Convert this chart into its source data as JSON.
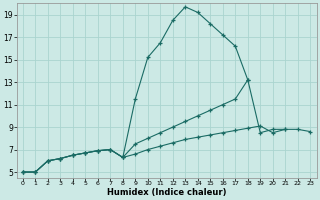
{
  "xlabel": "Humidex (Indice chaleur)",
  "bg_color": "#cce9e5",
  "grid_color": "#aad4cf",
  "line_color": "#1a6b64",
  "xlim": [
    -0.5,
    23.5
  ],
  "ylim": [
    4.5,
    20.0
  ],
  "xticks": [
    0,
    1,
    2,
    3,
    4,
    5,
    6,
    7,
    8,
    9,
    10,
    11,
    12,
    13,
    14,
    15,
    16,
    17,
    18,
    19,
    20,
    21,
    22,
    23
  ],
  "yticks": [
    5,
    7,
    9,
    11,
    13,
    15,
    17,
    19
  ],
  "lines": [
    {
      "x": [
        0,
        1,
        2,
        3,
        4,
        5,
        6,
        7,
        8,
        9,
        10,
        11,
        12,
        13,
        14,
        15,
        16,
        17,
        18
      ],
      "y": [
        5,
        5,
        6,
        6.2,
        6.5,
        6.7,
        6.9,
        7.0,
        6.3,
        11.5,
        15.2,
        16.5,
        18.5,
        19.7,
        19.2,
        18.2,
        17.2,
        16.2,
        13.2
      ]
    },
    {
      "x": [
        0,
        1,
        2,
        3,
        4,
        5,
        6,
        7,
        8,
        9,
        10,
        11,
        12,
        13,
        14,
        15,
        16,
        17,
        18,
        19,
        20,
        21
      ],
      "y": [
        5,
        5,
        6,
        6.2,
        6.5,
        6.7,
        6.9,
        7.0,
        6.3,
        7.5,
        8.0,
        8.5,
        9.0,
        9.5,
        10.0,
        10.5,
        11.0,
        11.5,
        13.2,
        8.5,
        8.8,
        8.8
      ]
    },
    {
      "x": [
        0,
        1,
        2,
        3,
        4,
        5,
        6,
        7,
        8,
        9,
        10,
        11,
        12,
        13,
        14,
        15,
        16,
        17,
        18,
        19,
        20,
        21,
        22,
        23
      ],
      "y": [
        5,
        5,
        6,
        6.2,
        6.5,
        6.7,
        6.9,
        7.0,
        6.3,
        6.6,
        7.0,
        7.3,
        7.6,
        7.9,
        8.1,
        8.3,
        8.5,
        8.7,
        8.9,
        9.1,
        8.5,
        8.8,
        8.8,
        8.6
      ]
    }
  ]
}
